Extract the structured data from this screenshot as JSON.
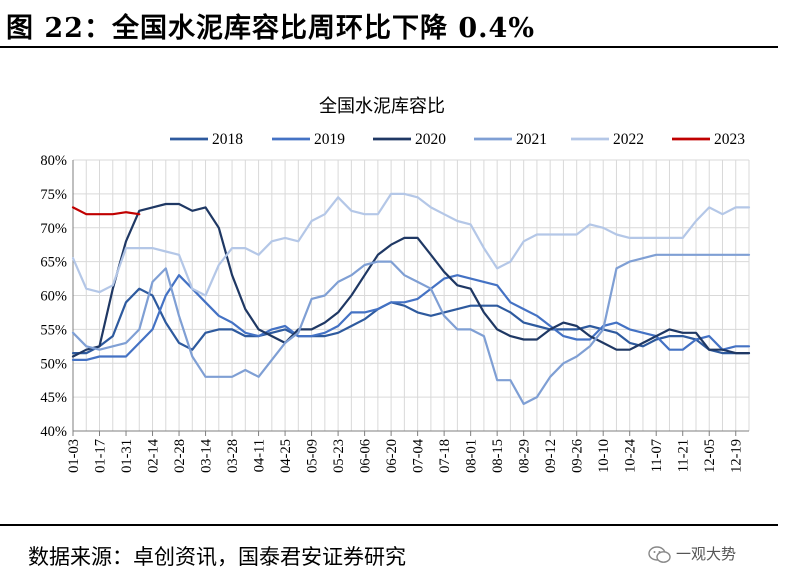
{
  "figure_title": "图 22：全国水泥库容比周环比下降 0.4%",
  "source": "数据来源：卓创资讯，国泰君安证券研究",
  "watermark": "一观大势",
  "watermark_icon": "wechat-icon",
  "chart_data": {
    "type": "line",
    "title": "全国水泥库容比",
    "xlabel": "",
    "ylabel": "",
    "ylim": [
      40,
      80
    ],
    "y_ticks": [
      40,
      45,
      50,
      55,
      60,
      65,
      70,
      75,
      80
    ],
    "y_tick_labels": [
      "40%",
      "45%",
      "50%",
      "55%",
      "60%",
      "65%",
      "70%",
      "75%",
      "80%"
    ],
    "x_range": [
      1,
      52
    ],
    "x_ticks": [
      1,
      3,
      5,
      7,
      9,
      11,
      13,
      15,
      17,
      19,
      21,
      23,
      25,
      27,
      29,
      31,
      33,
      35,
      37,
      39,
      41,
      43,
      45,
      47,
      49,
      51
    ],
    "x_tick_labels": [
      "01-03",
      "01-17",
      "01-31",
      "02-14",
      "02-28",
      "03-14",
      "03-28",
      "04-11",
      "04-25",
      "05-09",
      "05-23",
      "06-06",
      "06-20",
      "07-04",
      "07-18",
      "08-01",
      "08-15",
      "08-29",
      "09-12",
      "09-26",
      "10-10",
      "10-24",
      "11-07",
      "11-21",
      "12-05",
      "12-19"
    ],
    "grid": true,
    "legend_position": "top",
    "series": [
      {
        "name": "2018",
        "color": "#2e5a9e",
        "values": [
          51.5,
          51.5,
          52.5,
          54,
          59,
          61,
          60,
          56,
          53,
          52,
          54.5,
          55,
          55,
          54,
          54,
          54.5,
          55,
          54,
          54,
          54,
          54.5,
          55.5,
          56.5,
          58,
          59,
          58.5,
          57.5,
          57,
          57.5,
          58,
          58.5,
          58.5,
          58.5,
          57.5,
          56,
          55.5,
          55,
          55,
          55,
          55.5,
          55,
          54.5,
          53,
          52.5,
          53.5,
          54,
          54,
          53.5,
          52,
          51.5,
          51.5,
          51.5
        ]
      },
      {
        "name": "2019",
        "color": "#4472c4",
        "values": [
          50.5,
          50.5,
          51,
          51,
          51,
          53,
          55,
          60,
          63,
          61,
          59,
          57,
          56,
          54.5,
          54,
          55,
          55.5,
          54,
          54,
          54.5,
          55.5,
          57.5,
          57.5,
          58,
          59,
          59,
          59.5,
          61,
          62.5,
          63,
          62.5,
          62,
          61.5,
          59,
          58,
          57,
          55.5,
          54,
          53.5,
          53.5,
          55.5,
          56,
          55,
          54.5,
          54,
          52,
          52,
          53.5,
          54,
          52,
          52.5,
          52.5
        ]
      },
      {
        "name": "2020",
        "color": "#1f3864",
        "values": [
          51,
          52,
          52.5,
          61,
          68,
          72.5,
          73,
          73.5,
          73.5,
          72.5,
          73,
          70,
          63,
          58,
          55,
          54,
          53,
          55,
          55,
          56,
          57.5,
          60,
          63,
          66,
          67.5,
          68.5,
          68.5,
          66,
          63.5,
          61.5,
          61,
          57.5,
          55,
          54,
          53.5,
          53.5,
          55,
          56,
          55.5,
          54,
          53,
          52,
          52,
          53,
          54,
          55,
          54.5,
          54.5,
          52,
          52,
          51.5,
          51.5
        ]
      },
      {
        "name": "2021",
        "color": "#7f9fd4",
        "values": [
          54.5,
          52.5,
          52,
          52.5,
          53,
          55,
          62,
          64,
          57,
          51,
          48,
          48,
          48,
          49,
          48,
          50.5,
          53,
          54.5,
          59.5,
          60,
          62,
          63,
          64.5,
          65,
          65,
          63,
          62,
          61,
          57,
          55,
          55,
          54,
          47.5,
          47.5,
          44,
          45,
          48,
          50,
          51,
          52.5,
          55,
          64,
          65,
          65.5,
          66,
          66,
          66,
          66,
          66,
          66,
          66,
          66
        ]
      },
      {
        "name": "2022",
        "color": "#b4c7e7",
        "values": [
          65.5,
          61,
          60.5,
          61.5,
          67,
          67,
          67,
          66.5,
          66,
          61,
          60,
          64.5,
          67,
          67,
          66,
          68,
          68.5,
          68,
          71,
          72,
          74.5,
          72.5,
          72,
          72,
          75,
          75,
          74.5,
          73,
          72,
          71,
          70.5,
          67,
          64,
          65,
          68,
          69,
          69,
          69,
          69,
          70.5,
          70,
          69,
          68.5,
          68.5,
          68.5,
          68.5,
          68.5,
          71,
          73,
          72,
          73,
          73
        ]
      },
      {
        "name": "2023",
        "color": "#c00000",
        "values": [
          73,
          72,
          72,
          72,
          72.3,
          72
        ]
      }
    ]
  }
}
